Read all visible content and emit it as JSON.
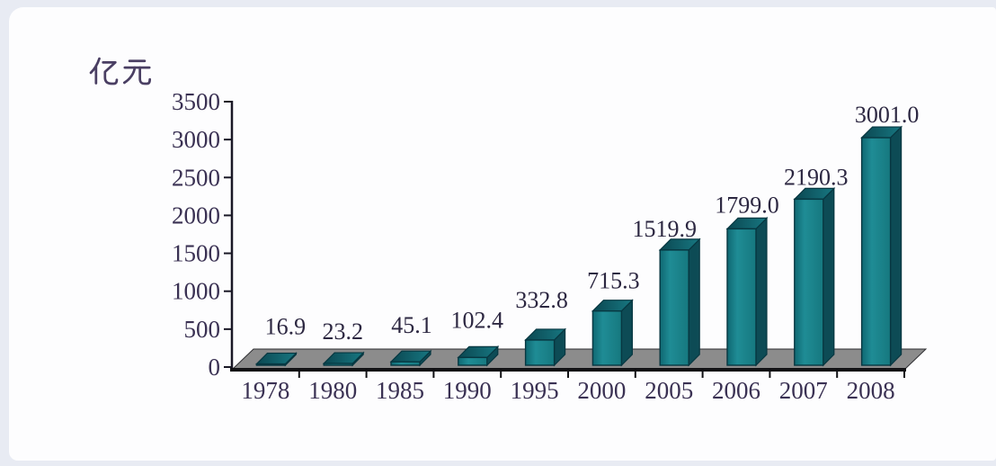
{
  "page": {
    "background": "#e8ebf3",
    "card_background": "#fdfdfe"
  },
  "chart_data": {
    "type": "bar",
    "projection": "3d",
    "title": "",
    "unit_label": "亿元",
    "categories": [
      "1978",
      "1980",
      "1985",
      "1990",
      "1995",
      "2000",
      "2005",
      "2006",
      "2007",
      "2008"
    ],
    "values": [
      16.9,
      23.2,
      45.1,
      102.4,
      332.8,
      715.3,
      1519.9,
      1799.0,
      2190.3,
      3001.0
    ],
    "value_labels": [
      "16.9",
      "23.2",
      "45.1",
      "102.4",
      "332.8",
      "715.3",
      "1519.9",
      "1799.0",
      "2190.3",
      "3001.0"
    ],
    "ylim": [
      0,
      3500
    ],
    "ytick_step": 500,
    "ytick_labels": [
      "3500",
      "3000",
      "2500",
      "2000",
      "1500",
      "1000",
      "500",
      "0"
    ],
    "grid": false,
    "legend": "none",
    "colors": {
      "bar_front": "#1f868f",
      "bar_front_dark": "#0f6872",
      "bar_side": "#0d4b55",
      "bar_top": "#11606b",
      "bar_top_dark": "#0b4751",
      "bar_outline": "#073741",
      "floor": "#8c8c8c",
      "floor_edge": "#111114",
      "axis": "#1a1826",
      "tick_text": "#3a3153",
      "value_text": "#2c2741",
      "unit_text": "#4a3f63"
    }
  }
}
